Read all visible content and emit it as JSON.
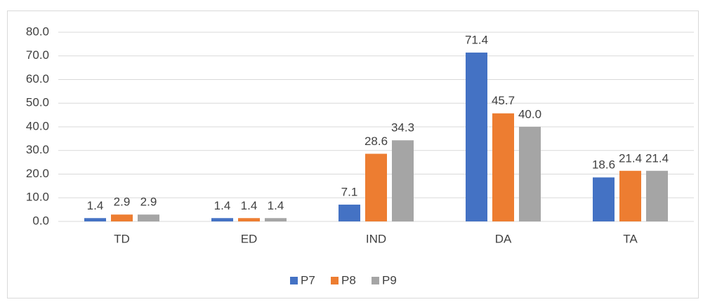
{
  "chart_data": {
    "type": "bar",
    "categories": [
      "TD",
      "ED",
      "IND",
      "DA",
      "TA"
    ],
    "series": [
      {
        "name": "P7",
        "color": "#4472c4",
        "values": [
          1.4,
          1.4,
          7.1,
          71.4,
          18.6
        ],
        "value_labels": [
          "1.4",
          "1.4",
          "7.1",
          "71.4",
          "18.6"
        ]
      },
      {
        "name": "P8",
        "color": "#ed7d31",
        "values": [
          2.9,
          1.4,
          28.6,
          45.7,
          21.4
        ],
        "value_labels": [
          "2.9",
          "1.4",
          "28.6",
          "45.7",
          "21.4"
        ]
      },
      {
        "name": "P9",
        "color": "#a5a5a5",
        "values": [
          2.9,
          1.4,
          34.3,
          40.0,
          21.4
        ],
        "value_labels": [
          "2.9",
          "1.4",
          "34.3",
          "40.0",
          "21.4"
        ]
      }
    ],
    "ylim": [
      0,
      80
    ],
    "yticks": [
      {
        "value": 0,
        "label": "0.0"
      },
      {
        "value": 10,
        "label": "10.0"
      },
      {
        "value": 20,
        "label": "20.0"
      },
      {
        "value": 30,
        "label": "30.0"
      },
      {
        "value": 40,
        "label": "40.0"
      },
      {
        "value": 50,
        "label": "50.0"
      },
      {
        "value": 60,
        "label": "60.0"
      },
      {
        "value": 70,
        "label": "70.0"
      },
      {
        "value": 80,
        "label": "80.0"
      }
    ],
    "grid": true,
    "legend": "bottom"
  }
}
